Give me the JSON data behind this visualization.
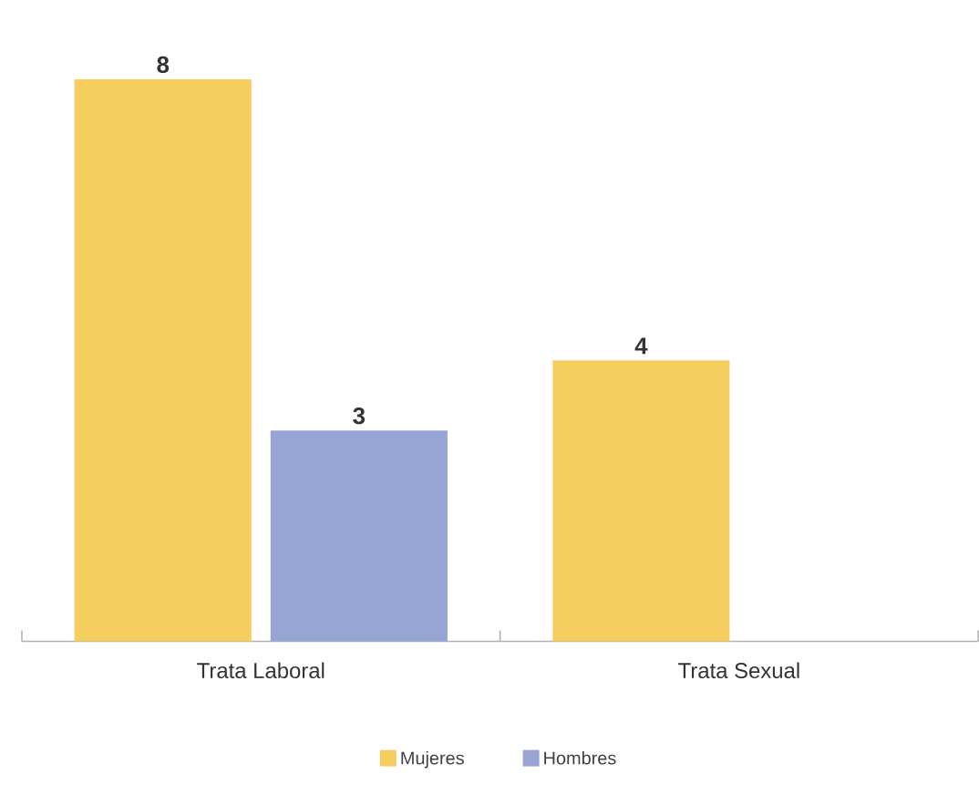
{
  "chart_data": {
    "type": "bar",
    "categories": [
      "Trata Laboral",
      "Trata Sexual"
    ],
    "series": [
      {
        "name": "Mujeres",
        "color": "#f6cd5f",
        "values": [
          8,
          4
        ]
      },
      {
        "name": "Hombres",
        "color": "#97a5d5",
        "values": [
          3,
          null
        ]
      }
    ],
    "data_labels": true,
    "legend": "bottom"
  }
}
